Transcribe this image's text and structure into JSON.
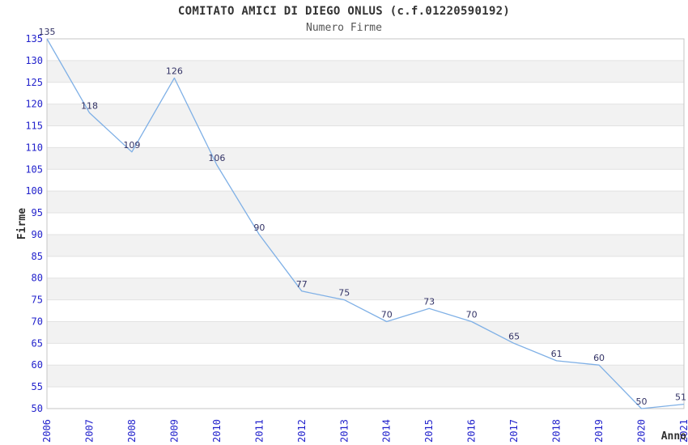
{
  "header": {
    "title": "COMITATO AMICI DI DIEGO ONLUS (c.f.01220590192)",
    "subtitle": "Numero Firme"
  },
  "chart_data": {
    "type": "line",
    "title": "COMITATO AMICI DI DIEGO ONLUS (c.f.01220590192)",
    "subtitle": "Numero Firme",
    "xlabel": "Anno",
    "ylabel": "Firme",
    "categories": [
      "2006",
      "2007",
      "2008",
      "2009",
      "2010",
      "2011",
      "2012",
      "2013",
      "2014",
      "2015",
      "2016",
      "2017",
      "2018",
      "2019",
      "2020",
      "2021"
    ],
    "values": [
      135,
      118,
      109,
      126,
      106,
      90,
      77,
      75,
      70,
      73,
      70,
      65,
      61,
      60,
      50,
      51
    ],
    "ylim": [
      50,
      135
    ],
    "ytick_step": 5,
    "yticks": [
      50,
      55,
      60,
      65,
      70,
      75,
      80,
      85,
      90,
      95,
      100,
      105,
      110,
      115,
      120,
      125,
      130,
      135
    ],
    "grid": "horizontal-alternating-bands",
    "legend": "none",
    "data_labels_visible": true,
    "colors": {
      "line": "#7FB0E6",
      "tick_label": "#2222CC",
      "data_label": "#333366",
      "band": "#F2F2F2",
      "gridline": "#E2E2E2",
      "plot_border": "#C6C6C6",
      "title": "#333333",
      "subtitle": "#555555",
      "axis_title": "#303030",
      "background": "#FFFFFF"
    }
  }
}
